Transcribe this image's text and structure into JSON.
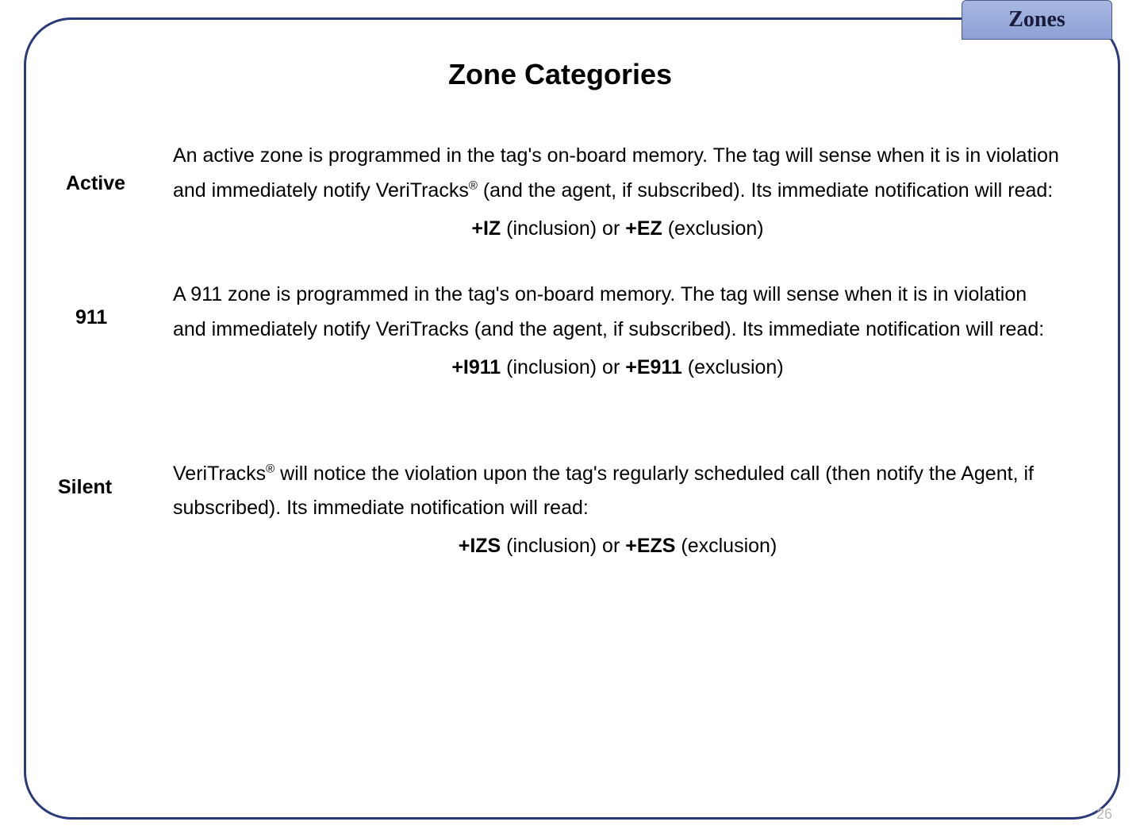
{
  "tab_label": "Zones",
  "title": "Zone Categories",
  "page_number": "26",
  "categories": [
    {
      "label": "Active",
      "desc_pre": "An active zone is programmed in the tag's on-board memory. The tag will sense when it is in violation and immediately notify VeriTracks",
      "desc_post": " (and the agent, if subscribed). Its immediate notification will read:",
      "sup": "®",
      "code_i": "+IZ",
      "code_i_note": " (inclusion) or ",
      "code_e": "+EZ",
      "code_e_note": " (exclusion)"
    },
    {
      "label": "911",
      "desc_pre": "A 911 zone is programmed in the tag's on-board memory.  The tag will sense when it is in violation and immediately notify VeriTracks (and the agent, if subscribed). Its immediate notification will read:",
      "desc_post": "",
      "sup": "",
      "code_i": "+I911",
      "code_i_note": " (inclusion) or ",
      "code_e": "+E911",
      "code_e_note": " (exclusion)"
    },
    {
      "label": "Silent",
      "desc_pre": "VeriTracks",
      "desc_post": " will notice the violation upon the tag's regularly scheduled call (then notify the Agent, if subscribed). Its immediate notification will read:",
      "sup": "®",
      "code_i": "+IZS",
      "code_i_note": " (inclusion) or ",
      "code_e": "+EZS",
      "code_e_note": " (exclusion)"
    }
  ]
}
